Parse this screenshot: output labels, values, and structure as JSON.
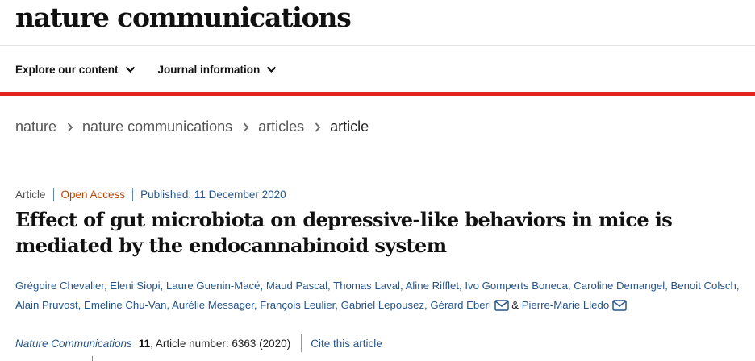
{
  "header": {
    "brand": "nature communications"
  },
  "nav": {
    "items": [
      {
        "label": "Explore our content"
      },
      {
        "label": "Journal information"
      }
    ]
  },
  "breadcrumb": [
    "nature",
    "nature communications",
    "articles",
    "article"
  ],
  "meta": {
    "type": "Article",
    "access": "Open Access",
    "published": "Published: 11 December 2020"
  },
  "article": {
    "title": "Effect of gut microbiota on depressive-like behaviors in mice is mediated by the endocannabinoid system",
    "authors": [
      "Grégoire Chevalier",
      "Eleni Siopi",
      "Laure Guenin-Macé",
      "Maud Pascal",
      "Thomas Laval",
      "Aline Rifflet",
      "Ivo Gomperts Boneca",
      "Caroline Demangel",
      "Benoit Colsch",
      "Alain Pruvost",
      "Emeline Chu-Van",
      "Aurélie Messager",
      "François Leulier",
      "Gabriel Lepousez",
      "Gérard Eberl",
      "Pierre-Marie Lledo"
    ],
    "author_joiner": "&"
  },
  "citation": {
    "journal": "Nature Communications",
    "volume": "11",
    "article_number": ", Article number: 6363 (2020)",
    "cite_label": "Cite this article"
  },
  "colors": {
    "accent_red": "#e0231e",
    "link_blue": "#25558b",
    "open_access": "#b84400"
  },
  "icons": {
    "nav_chevron": "chevron-down-icon",
    "breadcrumb_separator": "chevron-right-icon",
    "author_contact": "envelope-icon"
  }
}
